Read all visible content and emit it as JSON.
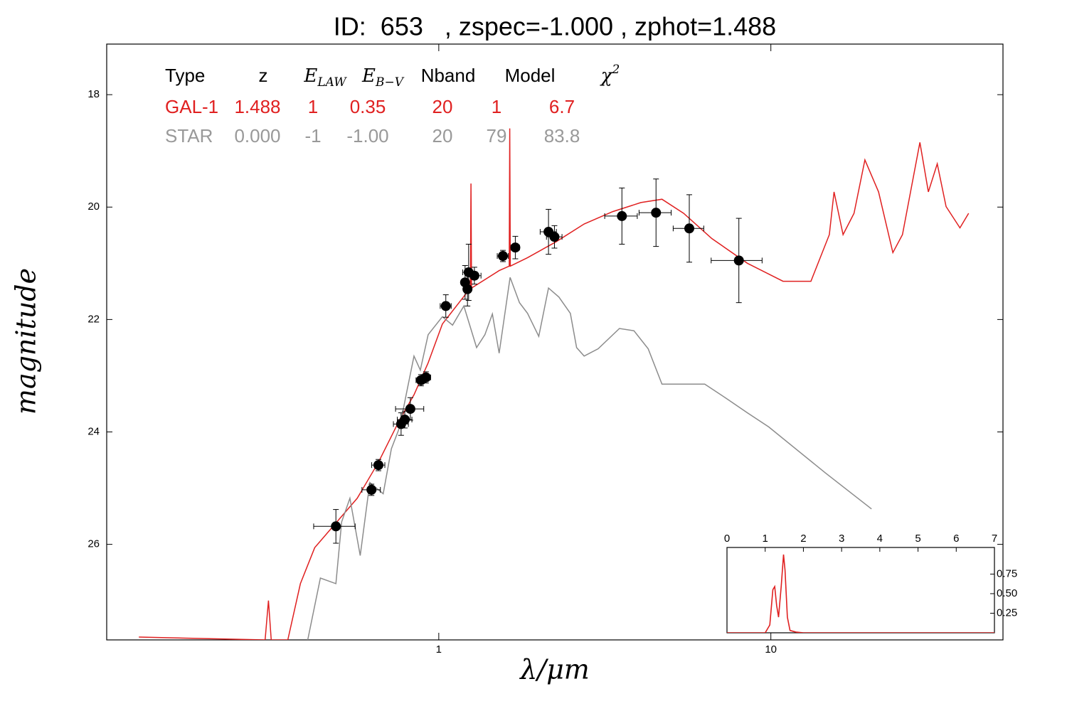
{
  "chart_data": [
    {
      "type": "line",
      "title": "ID:  653   , zspec=-1.000 , zphot=1.488",
      "xlabel": "λ/μm",
      "ylabel": "magnitude",
      "xscale": "log",
      "xlim": [
        0.1,
        50
      ],
      "ylim": [
        27.7,
        17.1
      ],
      "xticks": [
        1,
        10
      ],
      "yticks": [
        18,
        20,
        22,
        24,
        26
      ],
      "series": [
        {
          "type": "line",
          "color": "#e02020",
          "x": [
            0.125,
            0.3,
            0.307,
            0.313,
            0.351,
            0.383,
            0.423,
            0.49,
            0.568,
            0.658,
            0.763,
            0.842,
            0.929,
            1.025,
            1.13,
            1.245,
            1.25,
            1.255,
            1.52,
            1.63,
            1.636,
            1.642,
            1.85,
            2.25,
            2.74,
            3.34,
            4.06,
            4.7,
            5.46,
            6.64,
            8.5,
            10.88,
            13.2,
            15.0,
            15.5,
            16.5,
            17.8,
            19.2,
            21.1,
            23.3,
            24.9,
            28.1,
            29.8,
            31.7,
            33.7,
            37.1,
            39.4
          ],
          "values": [
            27.65,
            27.7,
            27.0,
            27.7,
            27.7,
            26.7,
            26.06,
            25.62,
            25.18,
            24.54,
            23.78,
            23.34,
            22.77,
            22.08,
            21.76,
            21.44,
            19.58,
            21.44,
            21.13,
            21.05,
            18.6,
            21.05,
            20.9,
            20.62,
            20.3,
            20.08,
            19.92,
            19.86,
            20.11,
            20.56,
            21.0,
            21.32,
            21.32,
            20.49,
            19.73,
            20.49,
            20.11,
            19.16,
            19.73,
            20.81,
            20.49,
            18.85,
            19.73,
            19.23,
            19.99,
            20.37,
            20.11
          ]
        },
        {
          "type": "line",
          "color": "#8c8c8c",
          "x": [
            0.403,
            0.44,
            0.49,
            0.51,
            0.54,
            0.58,
            0.62,
            0.68,
            0.72,
            0.763,
            0.8,
            0.842,
            0.88,
            0.929,
            1.025,
            1.1,
            1.19,
            1.3,
            1.377,
            1.45,
            1.52,
            1.64,
            1.75,
            1.85,
            2.0,
            2.14,
            2.3,
            2.49,
            2.6,
            2.74,
            3.02,
            3.5,
            3.87,
            4.27,
            4.7,
            5.46,
            6.32,
            7.33,
            8.5,
            9.85,
            14.6,
            20.1
          ],
          "values": [
            27.7,
            26.6,
            26.7,
            25.6,
            25.18,
            26.2,
            24.9,
            25.1,
            24.3,
            23.91,
            23.3,
            22.65,
            22.9,
            22.27,
            21.95,
            22.1,
            21.76,
            22.5,
            22.27,
            21.9,
            22.6,
            21.25,
            21.7,
            21.89,
            22.3,
            21.44,
            21.6,
            21.89,
            22.5,
            22.65,
            22.52,
            22.16,
            22.2,
            22.52,
            23.15,
            23.15,
            23.15,
            23.4,
            23.66,
            23.91,
            24.73,
            25.37
          ]
        },
        {
          "type": "errorbar",
          "color": "#000000",
          "x": [
            0.49,
            0.627,
            0.658,
            0.77,
            0.79,
            0.821,
            0.884,
            0.915,
            1.05,
            1.2,
            1.22,
            1.23,
            1.28,
            1.56,
            1.7,
            2.14,
            2.23,
            3.56,
            4.51,
            5.68,
            8.01
          ],
          "values": [
            25.68,
            25.03,
            24.59,
            23.86,
            23.78,
            23.59,
            23.08,
            23.03,
            21.76,
            21.34,
            21.46,
            21.16,
            21.22,
            20.87,
            20.72,
            20.44,
            20.53,
            20.16,
            20.1,
            20.38,
            20.95
          ],
          "xerr": [
            0.07,
            0.04,
            0.03,
            0.04,
            0.04,
            0.08,
            0.03,
            0.03,
            0.04,
            0.03,
            0.03,
            0.05,
            0.06,
            0.06,
            0.05,
            0.12,
            0.12,
            0.4,
            0.5,
            0.6,
            1.4
          ],
          "yerr": [
            0.3,
            0.1,
            0.1,
            0.2,
            0.15,
            0.2,
            0.1,
            0.1,
            0.2,
            0.3,
            0.3,
            0.5,
            0.15,
            0.1,
            0.2,
            0.4,
            0.2,
            0.5,
            0.6,
            0.6,
            0.75
          ]
        }
      ]
    },
    {
      "type": "line",
      "xlim": [
        0,
        7
      ],
      "ylim": [
        0,
        1.09
      ],
      "xticks": [
        0,
        1,
        2,
        3,
        4,
        5,
        6,
        7
      ],
      "yticks": [
        0.25,
        {
          "value": 0.5,
          "label": "0.50"
        },
        0.75
      ],
      "series": [
        {
          "color": "#e02020",
          "x": [
            0,
            1.0,
            1.12,
            1.2,
            1.25,
            1.3,
            1.35,
            1.42,
            1.48,
            1.52,
            1.58,
            1.65,
            1.8,
            2.0,
            7
          ],
          "values": [
            0,
            0,
            0.1,
            0.55,
            0.59,
            0.35,
            0.2,
            0.6,
            1.0,
            0.8,
            0.2,
            0.03,
            0.01,
            0,
            0
          ]
        }
      ]
    }
  ],
  "table": {
    "header": [
      "Type",
      "z",
      "E_LAW",
      "E_B−V",
      "Nband",
      "Model",
      "χ^2"
    ],
    "rows": [
      [
        "GAL-1",
        "1.488",
        "1",
        "0.35",
        "20",
        "1",
        "6.7"
      ],
      [
        "STAR",
        "0.000",
        "-1",
        "-1.00",
        "20",
        "79",
        "83.8"
      ]
    ],
    "row_colors": [
      "#e02020",
      "#999999"
    ]
  }
}
